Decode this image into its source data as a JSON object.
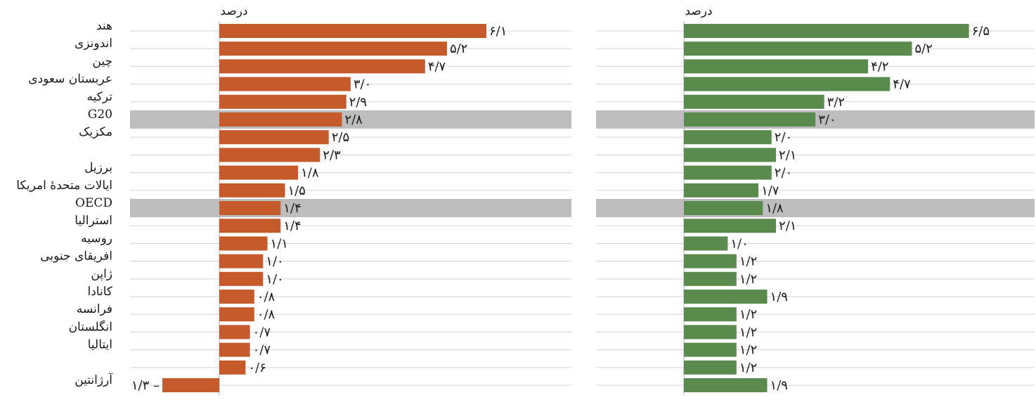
{
  "colors": {
    "left_bar": "#C55A2B",
    "right_bar": "#5B8A4F",
    "highlight_band": "#BDBDBD",
    "gridline": "#D9D9D9",
    "axis": "#BFBFBF"
  },
  "chart_data": [
    {
      "type": "bar",
      "orientation": "horizontal",
      "unit_label": "درصد",
      "xlim": [
        -1.3,
        6.1
      ],
      "categories": [
        "هند",
        "اندونزی",
        "چین",
        "عربستان سعودی",
        "ترکیه",
        "G20",
        "مکزیک",
        "",
        "برزیل",
        "ایالات متحدهٔ امریکا",
        "OECD",
        "استرالیا",
        "روسیه",
        "افریقای جنوبی",
        "ژاپن",
        "کانادا",
        "فرانسه",
        "انگلستان",
        "ایتالیا",
        "",
        "آرژانتین"
      ],
      "highlighted": [
        "G20",
        "OECD"
      ],
      "values": [
        6.1,
        5.2,
        4.7,
        3.0,
        2.9,
        2.8,
        2.5,
        2.3,
        1.8,
        1.5,
        1.4,
        1.4,
        1.1,
        1.0,
        1.0,
        0.8,
        0.8,
        0.7,
        0.7,
        0.6,
        -1.3
      ],
      "value_labels": [
        "۶/۱",
        "۵/۲",
        "۴/۷",
        "۳/۰",
        "۲/۹",
        "۲/۸",
        "۲/۵",
        "۲/۳",
        "۱/۸",
        "۱/۵",
        "۱/۴",
        "۱/۴",
        "۱/۱",
        "۱/۰",
        "۱/۰",
        "۰/۸",
        "۰/۸",
        "۰/۷",
        "۰/۷",
        "۰/۶",
        "۱/۳ –"
      ]
    },
    {
      "type": "bar",
      "orientation": "horizontal",
      "unit_label": "درصد",
      "xlim": [
        0,
        6.5
      ],
      "values": [
        6.5,
        5.2,
        4.2,
        4.7,
        3.2,
        3.0,
        2.0,
        2.1,
        2.0,
        1.7,
        1.8,
        2.1,
        1.0,
        1.2,
        1.2,
        1.9,
        1.2,
        1.2,
        1.2,
        1.2,
        1.9
      ],
      "value_labels": [
        "۶/۵",
        "۵/۲",
        "۴/۲",
        "۴/۷",
        "۳/۲",
        "۳/۰",
        "۲/۰",
        "۲/۱",
        "۲/۰",
        "۱/۷",
        "۱/۸",
        "۲/۱",
        "۱/۰",
        "۱/۲",
        "۱/۲",
        "۱/۹",
        "۱/۲",
        "۱/۲",
        "۱/۲",
        "۱/۲",
        "۱/۹"
      ]
    }
  ]
}
